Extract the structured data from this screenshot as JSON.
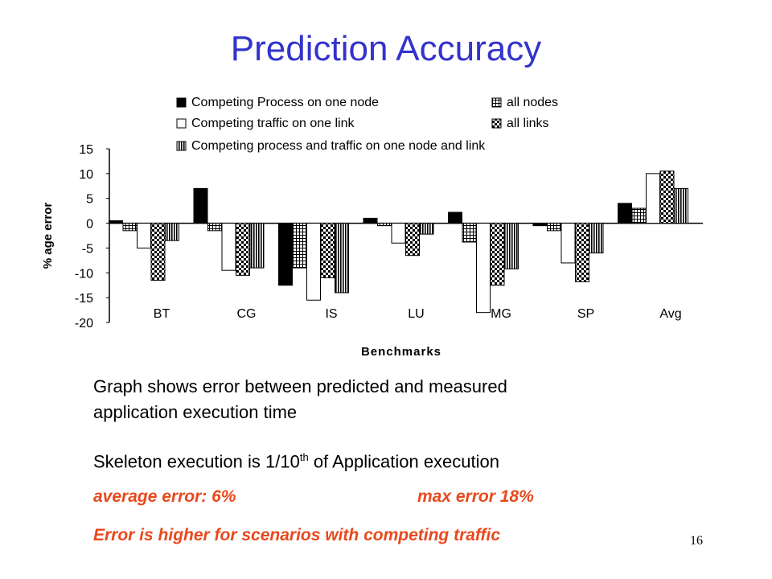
{
  "slide": {
    "title": "Prediction Accuracy",
    "text_line1": "Graph shows error between predicted and measured",
    "text_line2": "application execution time",
    "skeleton_prefix": "Skeleton execution is 1/10",
    "skeleton_sup": "th",
    "skeleton_of": "of",
    "skeleton_suffix": "Application  execution",
    "avg_error": "average error: 6%",
    "max_error": "max error 18%",
    "note": "Error is higher for scenarios with competing traffic",
    "page_number": "16"
  },
  "chart_data": {
    "type": "bar",
    "title": "",
    "xlabel": "Benchmarks",
    "ylabel": "% age error",
    "ylim": [
      -20,
      15
    ],
    "yticks": [
      15,
      10,
      5,
      0,
      -5,
      -10,
      -15,
      -20
    ],
    "categories": [
      "BT",
      "CG",
      "IS",
      "LU",
      "MG",
      "SP",
      "Avg"
    ],
    "legend_position": "top",
    "grid": false,
    "series": [
      {
        "name": "Competing Process on one node",
        "fill": "solid-black",
        "values": [
          0.5,
          7,
          -12.5,
          1,
          2.2,
          -0.5,
          4
        ]
      },
      {
        "name": "all nodes",
        "fill": "grid",
        "values": [
          -1.5,
          -1.5,
          -9,
          -0.5,
          -3.8,
          -1.5,
          3
        ]
      },
      {
        "name": "Competing traffic on one link",
        "fill": "white",
        "values": [
          -5,
          -9.5,
          -15.5,
          -4,
          -18,
          -8,
          10
        ]
      },
      {
        "name": "all links",
        "fill": "checker",
        "values": [
          -11.5,
          -10.5,
          -11,
          -6.5,
          -12.5,
          -11.8,
          10.5
        ]
      },
      {
        "name": "Competing process and traffic on one node and link",
        "fill": "vertical-stripes",
        "values": [
          -3.5,
          -9,
          -14,
          -2.2,
          -9.2,
          -6,
          7
        ]
      }
    ],
    "legend_layout": [
      [
        0,
        1
      ],
      [
        2,
        3
      ],
      [
        4
      ]
    ]
  }
}
